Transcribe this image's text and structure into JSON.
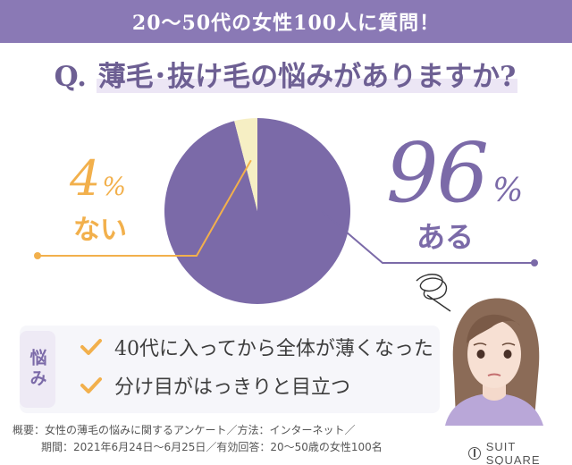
{
  "banner": {
    "title": "20〜50代の女性100人に質問！"
  },
  "question": {
    "prefix": "Q.",
    "text": "薄毛･抜け毛の悩みがありますか?"
  },
  "chart_data": {
    "type": "pie",
    "categories": [
      "ある",
      "ない"
    ],
    "values": [
      96,
      4
    ],
    "unit": "%",
    "colors": {
      "ある": "#7b6aa8",
      "ない": "#f6efc4"
    },
    "leader_colors": {
      "ある": "#7b6aa8",
      "ない": "#f2b04c"
    }
  },
  "labels": {
    "no": {
      "value": "4",
      "unit": "%",
      "text": "ない"
    },
    "yes": {
      "value": "96",
      "unit": "%",
      "text": "ある"
    }
  },
  "worries": {
    "tab": "悩み",
    "items": [
      "40代に入ってから全体が薄くなった",
      "分け目がはっきりと目立つ"
    ],
    "check_color": "#f2b04c"
  },
  "footnote": {
    "line1": "概要：女性の薄毛の悩みに関するアンケート／方法：インターネット／",
    "line2": "期間：2021年6月24日〜6月25日／有効回答：20〜50歳の女性100名"
  },
  "logo": {
    "text": "SUIT SQUARE"
  }
}
